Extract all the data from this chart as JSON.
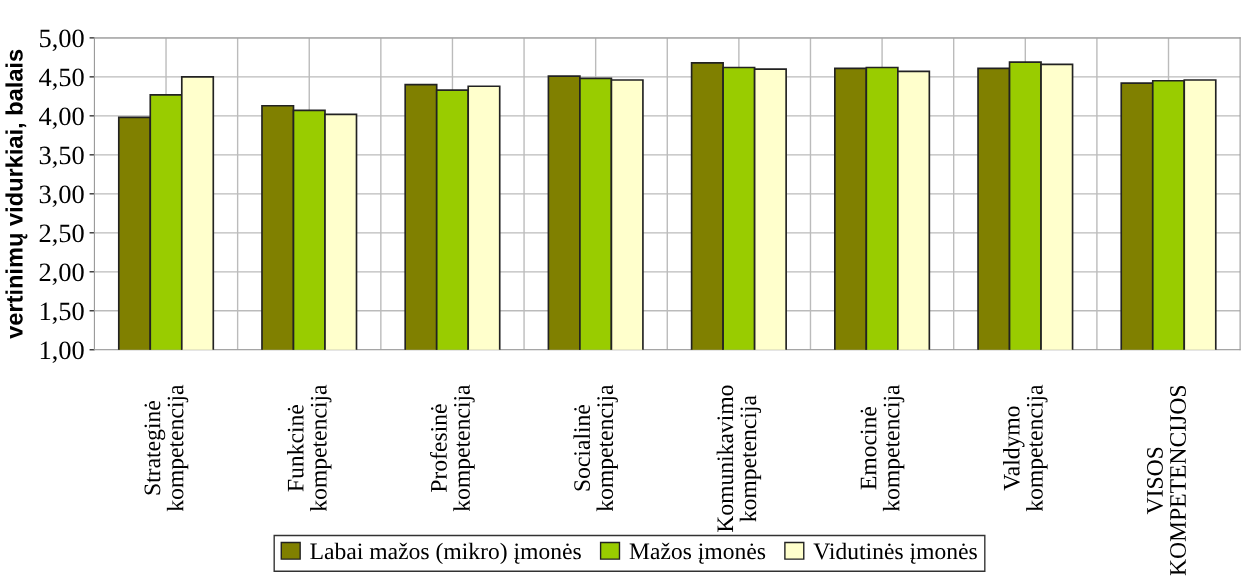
{
  "chart_data": {
    "type": "bar",
    "ylabel": "vertinimų vidurkiai, balais",
    "categories": [
      "Strateginė\nkompetencija",
      "Funkcinė\nkompetencija",
      "Profesinė\nkompetencija",
      "Socialinė\nkompetencija",
      "Komunikavimo\nkompetencija",
      "Emocinė\nkompetencija",
      "Valdymo\nkompetencija",
      "VISOS\nKOMPETENCIJOS"
    ],
    "series": [
      {
        "name": "Labai mažos (mikro) įmonės",
        "color": "#808000",
        "values": [
          3.98,
          4.13,
          4.4,
          4.51,
          4.68,
          4.61,
          4.61,
          4.42
        ]
      },
      {
        "name": "Mažos įmonės",
        "color": "#99cc00",
        "values": [
          4.27,
          4.07,
          4.33,
          4.48,
          4.62,
          4.62,
          4.69,
          4.45
        ]
      },
      {
        "name": "Vidutinės įmonės",
        "color": "#ffffcc",
        "values": [
          4.5,
          4.02,
          4.38,
          4.46,
          4.6,
          4.57,
          4.66,
          4.46
        ]
      }
    ],
    "ylim": [
      1.0,
      5.0
    ],
    "yticks": [
      {
        "value": 1.0,
        "label": "1,00"
      },
      {
        "value": 1.5,
        "label": "1,50"
      },
      {
        "value": 2.0,
        "label": "2,00"
      },
      {
        "value": 2.5,
        "label": "2,50"
      },
      {
        "value": 3.0,
        "label": "3,00"
      },
      {
        "value": 3.5,
        "label": "3,50"
      },
      {
        "value": 4.0,
        "label": "4,00"
      },
      {
        "value": 4.5,
        "label": "4,50"
      },
      {
        "value": 5.0,
        "label": "5,00"
      }
    ],
    "grid": true,
    "legend": "bottom"
  }
}
